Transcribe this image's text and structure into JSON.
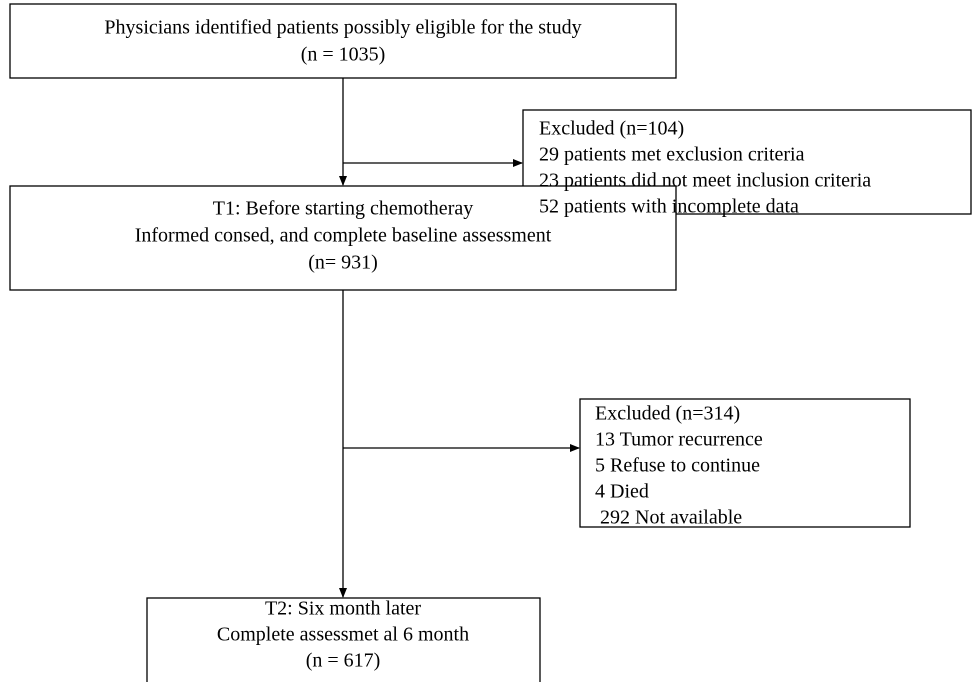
{
  "nodes": [
    {
      "lines": [
        "Physicians identified patients possibly eligible for the study",
        "(n = 1035)"
      ]
    },
    {
      "lines": [
        "Excluded (n=104)",
        "29 patients met exclusion criteria",
        "23 patients did not meet inclusion criteria",
        "52 patients with incomplete data"
      ]
    },
    {
      "lines": [
        "T1: Before starting chemotheray",
        "Informed consed, and complete baseline assessment",
        "(n= 931)"
      ]
    },
    {
      "lines": [
        "Excluded (n=314)",
        "13 Tumor recurrence",
        "5 Refuse to continue",
        "4 Died",
        " 292 Not available"
      ]
    },
    {
      "lines": [
        "T2: Six month later",
        "Complete assessmet al 6 month",
        "(n = 617)"
      ]
    }
  ]
}
